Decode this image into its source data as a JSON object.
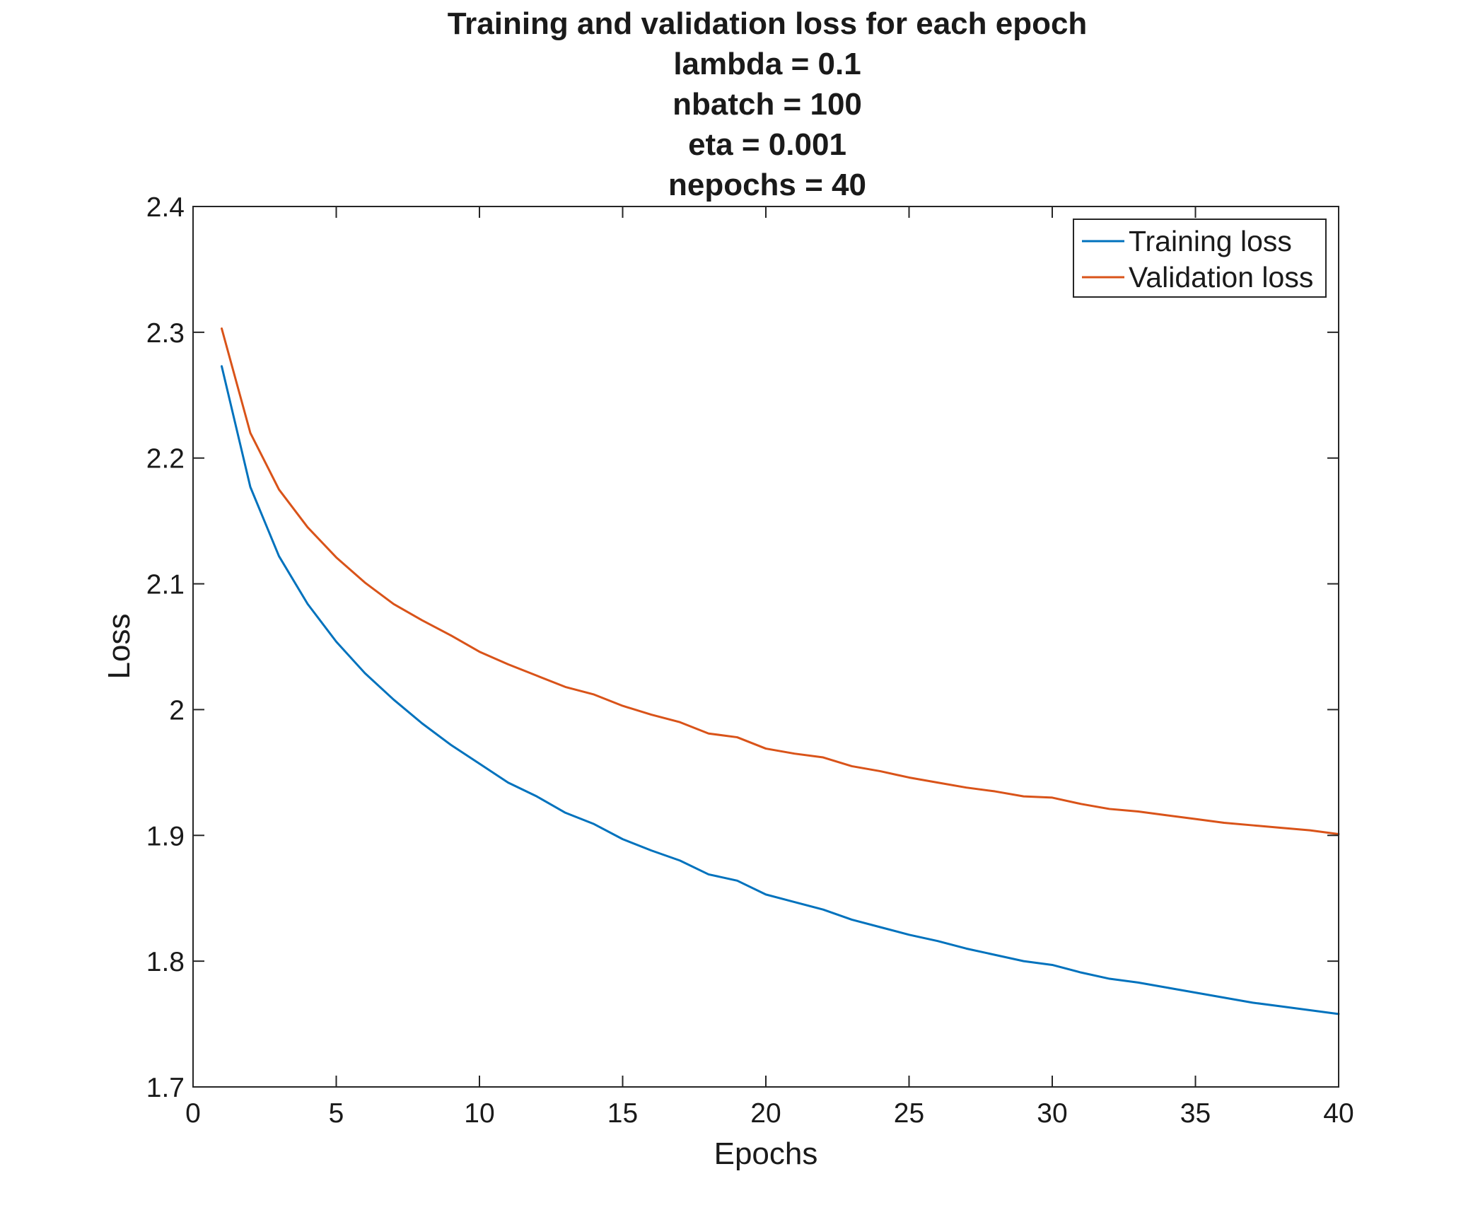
{
  "chart_data": {
    "type": "line",
    "title": [
      "Training and validation loss for each epoch",
      "lambda = 0.1",
      "nbatch = 100",
      "eta = 0.001",
      "nepochs = 40"
    ],
    "xlabel": "Epochs",
    "ylabel": "Loss",
    "xlim": [
      0,
      40
    ],
    "ylim": [
      1.7,
      2.4
    ],
    "xticks": [
      0,
      5,
      10,
      15,
      20,
      25,
      30,
      35,
      40
    ],
    "xtick_labels": [
      "0",
      "5",
      "10",
      "15",
      "20",
      "25",
      "30",
      "35",
      "40"
    ],
    "yticks": [
      1.7,
      1.8,
      1.9,
      2.0,
      2.1,
      2.2,
      2.3,
      2.4
    ],
    "ytick_labels": [
      "1.7",
      "1.8",
      "1.9",
      "2",
      "2.1",
      "2.2",
      "2.3",
      "2.4"
    ],
    "grid": false,
    "legend_position": "top-right",
    "x": [
      1,
      2,
      3,
      4,
      5,
      6,
      7,
      8,
      9,
      10,
      11,
      12,
      13,
      14,
      15,
      16,
      17,
      18,
      19,
      20,
      21,
      22,
      23,
      24,
      25,
      26,
      27,
      28,
      29,
      30,
      31,
      32,
      33,
      34,
      35,
      36,
      37,
      38,
      39,
      40
    ],
    "series": [
      {
        "name": "Training loss",
        "color": "#0072BD",
        "values": [
          2.273,
          2.177,
          2.122,
          2.084,
          2.054,
          2.029,
          2.008,
          1.989,
          1.972,
          1.957,
          1.942,
          1.931,
          1.918,
          1.909,
          1.897,
          1.888,
          1.88,
          1.869,
          1.864,
          1.853,
          1.847,
          1.841,
          1.833,
          1.827,
          1.821,
          1.816,
          1.81,
          1.805,
          1.8,
          1.797,
          1.791,
          1.786,
          1.783,
          1.779,
          1.775,
          1.771,
          1.767,
          1.764,
          1.761,
          1.758
        ]
      },
      {
        "name": "Validation loss",
        "color": "#D95319",
        "values": [
          2.303,
          2.22,
          2.175,
          2.145,
          2.121,
          2.101,
          2.084,
          2.071,
          2.059,
          2.046,
          2.036,
          2.027,
          2.018,
          2.012,
          2.003,
          1.996,
          1.99,
          1.981,
          1.978,
          1.969,
          1.965,
          1.962,
          1.955,
          1.951,
          1.946,
          1.942,
          1.938,
          1.935,
          1.931,
          1.93,
          1.925,
          1.921,
          1.919,
          1.916,
          1.913,
          1.91,
          1.908,
          1.906,
          1.904,
          1.901
        ]
      }
    ]
  }
}
